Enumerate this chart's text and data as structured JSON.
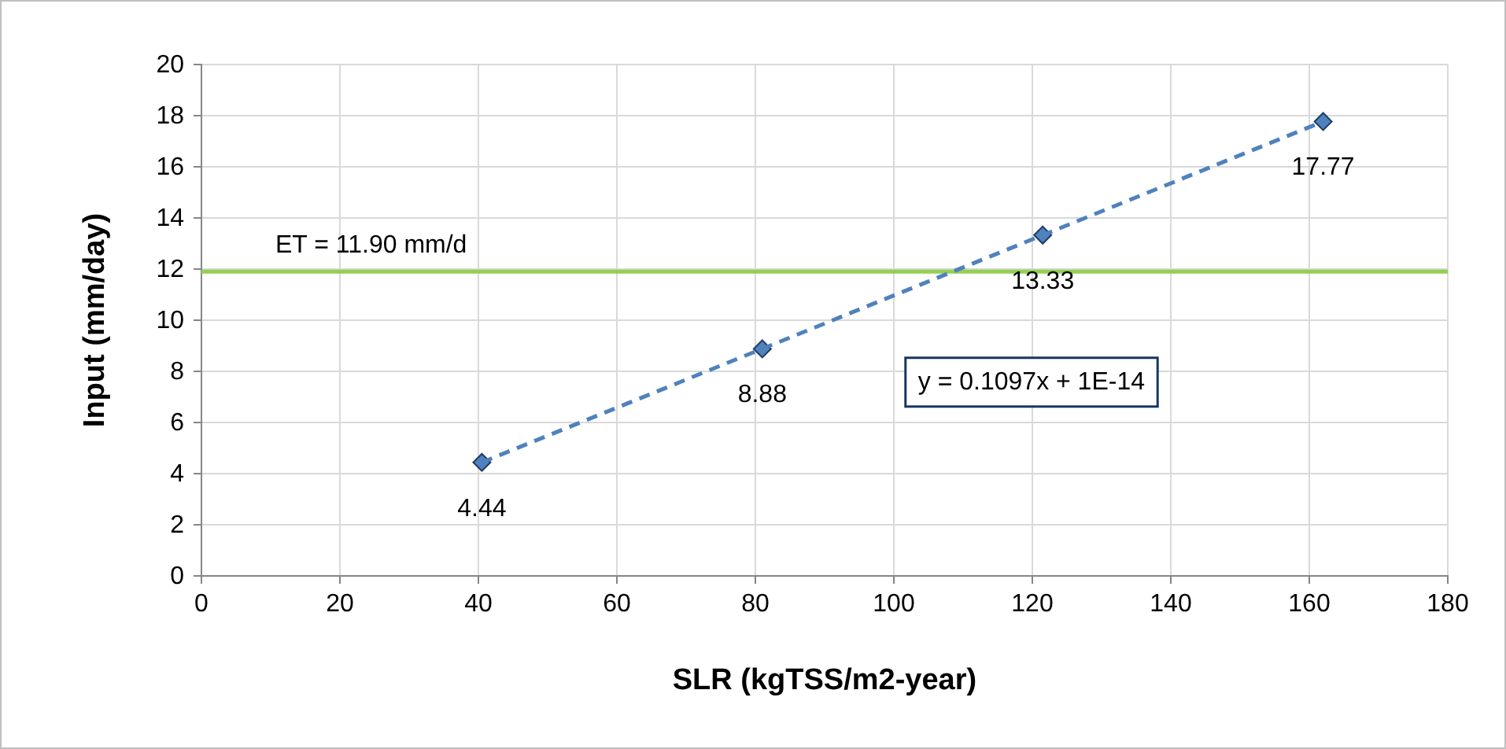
{
  "chart_data": {
    "type": "scatter",
    "xlabel": "SLR (kgTSS/m2-year)",
    "ylabel": "Input (mm/day)",
    "x": [
      40.5,
      81,
      121.5,
      162
    ],
    "series": [
      {
        "color": "#4f81bd",
        "values": [
          4.44,
          8.88,
          13.33,
          17.77
        ],
        "value_labels": [
          "4.44",
          "8.88",
          "13.33",
          "17.77"
        ],
        "marker": "diamond"
      },
      {
        "type": "line",
        "color": "#4f81bd",
        "x": [
          40.5,
          162
        ],
        "values": [
          4.44,
          17.77
        ],
        "line_style": "dashed",
        "marker": "none"
      }
    ],
    "xlim": [
      0,
      180
    ],
    "xticks": [
      0,
      20,
      40,
      60,
      80,
      100,
      120,
      140,
      160,
      180
    ],
    "ylim": [
      0,
      20
    ],
    "yticks": [
      0,
      2,
      4,
      6,
      8,
      10,
      12,
      14,
      16,
      18,
      20
    ],
    "grid": true,
    "ref_lines": [
      {
        "axis": "y",
        "value": 11.9,
        "label": "ET = 11.90 mm/d",
        "color": "#92d050"
      }
    ],
    "annotations": [
      "y = 0.1097x + 1E-14"
    ]
  }
}
